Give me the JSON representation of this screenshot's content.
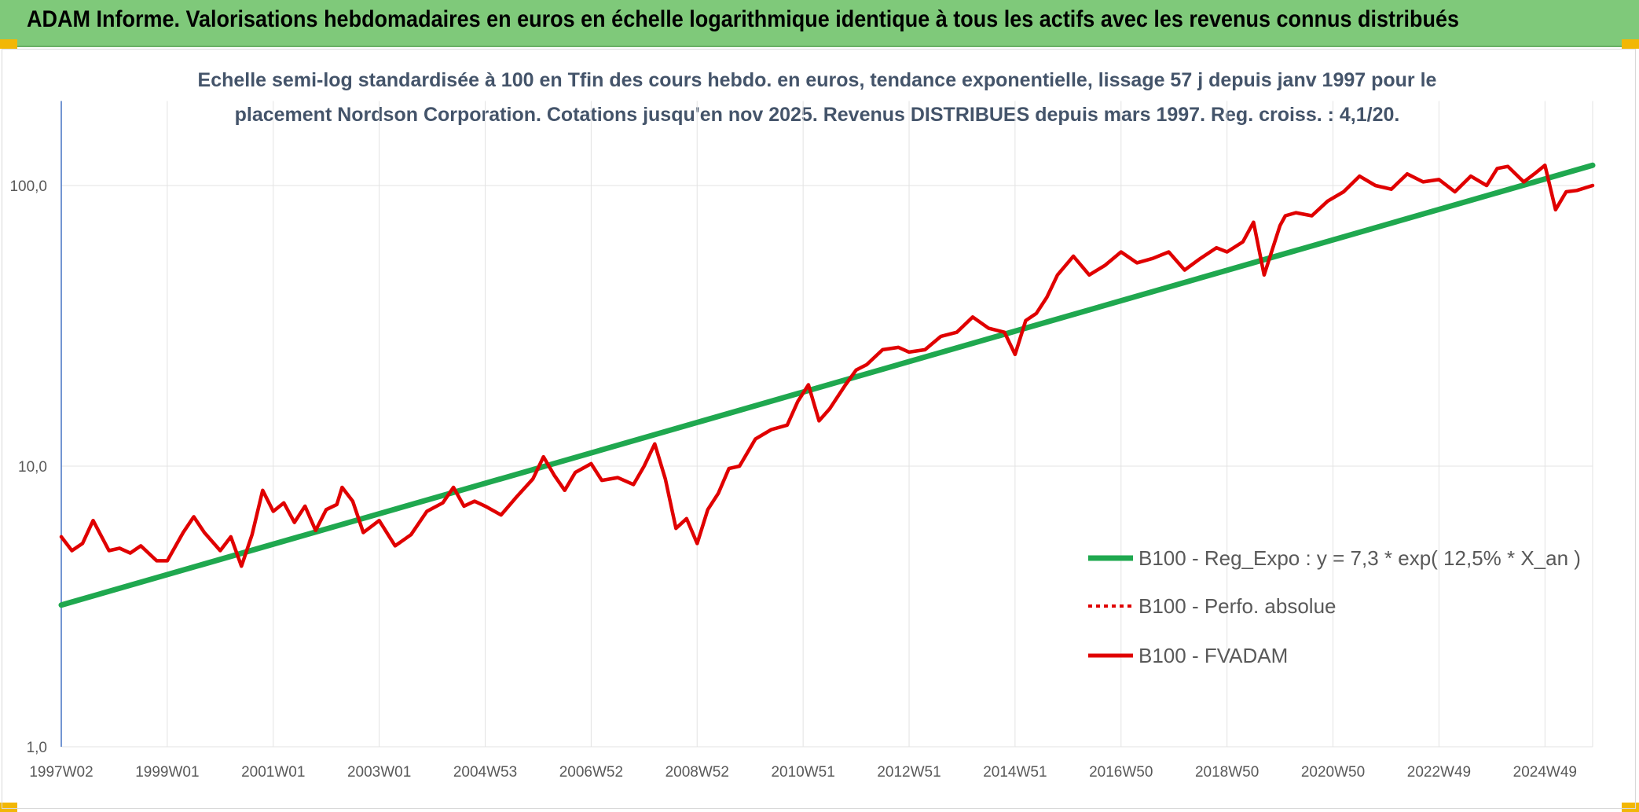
{
  "header": {
    "title": "ADAM Informe. Valorisations hebdomadaires en euros en échelle logarithmique identique à tous les actifs avec les revenus connus distribués"
  },
  "chart_data": {
    "type": "line",
    "subtitle_line1": "Echelle semi-log standardisée à 100 en Tfin des cours hebdo. en euros, tendance exponentielle, lissage 57 j depuis janv 1997 pour le",
    "subtitle_line2": "placement Nordson Corporation. Cotations jusqu'en nov 2025. Revenus DISTRIBUES depuis mars 1997. Reg. croiss. : 4,1/20.",
    "y_scale": "log",
    "ylim": [
      1,
      200
    ],
    "xlim": [
      1997.0,
      2025.9
    ],
    "grid": true,
    "legend_position": "right",
    "y_ticks": [
      {
        "value": 1,
        "label": "1,0"
      },
      {
        "value": 10,
        "label": "10,0"
      },
      {
        "value": 100,
        "label": "100,0"
      }
    ],
    "x_ticks": [
      {
        "value": 1997.0,
        "label": "1997W02"
      },
      {
        "value": 1999.0,
        "label": "1999W01"
      },
      {
        "value": 2001.0,
        "label": "2001W01"
      },
      {
        "value": 2003.0,
        "label": "2003W01"
      },
      {
        "value": 2005.0,
        "label": "2004W53"
      },
      {
        "value": 2007.0,
        "label": "2006W52"
      },
      {
        "value": 2009.0,
        "label": "2008W52"
      },
      {
        "value": 2011.0,
        "label": "2010W51"
      },
      {
        "value": 2013.0,
        "label": "2012W51"
      },
      {
        "value": 2015.0,
        "label": "2014W51"
      },
      {
        "value": 2017.0,
        "label": "2016W50"
      },
      {
        "value": 2019.0,
        "label": "2018W50"
      },
      {
        "value": 2021.0,
        "label": "2020W50"
      },
      {
        "value": 2023.0,
        "label": "2022W49"
      },
      {
        "value": 2025.0,
        "label": "2024W49"
      }
    ],
    "series": [
      {
        "name": "B100 - Reg_Expo : y = 7,3 * exp( 12,5% *  X_an )",
        "color": "#1fa84f",
        "style": "solid",
        "x": [
          1997.0,
          2025.9
        ],
        "y": [
          3.2,
          118
        ]
      },
      {
        "name": "B100 - Perfo. absolue",
        "color": "#e00000",
        "style": "dotted",
        "x": [],
        "y": []
      },
      {
        "name": "B100 - FVADAM",
        "color": "#e00000",
        "style": "solid",
        "x": [
          1997.0,
          1997.2,
          1997.4,
          1997.6,
          1997.9,
          1998.1,
          1998.3,
          1998.5,
          1998.8,
          1999.0,
          1999.3,
          1999.5,
          1999.7,
          2000.0,
          2000.2,
          2000.4,
          2000.6,
          2000.8,
          2001.0,
          2001.2,
          2001.4,
          2001.6,
          2001.8,
          2002.0,
          2002.2,
          2002.3,
          2002.5,
          2002.7,
          2003.0,
          2003.3,
          2003.6,
          2003.9,
          2004.2,
          2004.4,
          2004.6,
          2004.8,
          2005.0,
          2005.3,
          2005.6,
          2005.9,
          2006.1,
          2006.3,
          2006.5,
          2006.7,
          2007.0,
          2007.2,
          2007.5,
          2007.8,
          2008.0,
          2008.2,
          2008.4,
          2008.6,
          2008.8,
          2009.0,
          2009.2,
          2009.4,
          2009.6,
          2009.8,
          2010.1,
          2010.4,
          2010.7,
          2010.9,
          2011.1,
          2011.3,
          2011.5,
          2011.8,
          2012.0,
          2012.2,
          2012.5,
          2012.8,
          2013.0,
          2013.3,
          2013.6,
          2013.9,
          2014.2,
          2014.5,
          2014.8,
          2015.0,
          2015.2,
          2015.4,
          2015.6,
          2015.8,
          2016.1,
          2016.4,
          2016.7,
          2017.0,
          2017.3,
          2017.6,
          2017.9,
          2018.2,
          2018.5,
          2018.8,
          2019.0,
          2019.3,
          2019.5,
          2019.7,
          2020.0,
          2020.1,
          2020.3,
          2020.6,
          2020.9,
          2021.2,
          2021.5,
          2021.8,
          2022.1,
          2022.4,
          2022.7,
          2023.0,
          2023.3,
          2023.6,
          2023.9,
          2024.1,
          2024.3,
          2024.6,
          2024.8,
          2025.0,
          2025.2,
          2025.4,
          2025.6,
          2025.9
        ],
        "y": [
          5.6,
          5.0,
          5.3,
          6.4,
          5.0,
          5.1,
          4.9,
          5.2,
          4.6,
          4.6,
          5.8,
          6.6,
          5.8,
          5.0,
          5.6,
          4.4,
          5.7,
          8.2,
          6.9,
          7.4,
          6.3,
          7.2,
          5.9,
          7.0,
          7.3,
          8.4,
          7.5,
          5.8,
          6.4,
          5.2,
          5.7,
          6.9,
          7.4,
          8.4,
          7.2,
          7.5,
          7.2,
          6.7,
          7.8,
          9.0,
          10.8,
          9.3,
          8.2,
          9.5,
          10.2,
          8.9,
          9.1,
          8.6,
          10.0,
          12.0,
          9.0,
          6.0,
          6.5,
          5.3,
          7.0,
          8.0,
          9.8,
          10.0,
          12.5,
          13.5,
          14.0,
          17.0,
          19.5,
          14.5,
          16.0,
          19.5,
          22.0,
          23.0,
          26.0,
          26.5,
          25.5,
          26.0,
          29.0,
          30.0,
          34.0,
          31.0,
          30.0,
          25.0,
          33.0,
          35.0,
          40.0,
          48.0,
          56.0,
          48.0,
          52.0,
          58.0,
          53.0,
          55.0,
          58.0,
          50.0,
          55.0,
          60.0,
          58.0,
          63.0,
          74.0,
          48.0,
          72.0,
          78.0,
          80.0,
          78.0,
          88.0,
          95.0,
          108.0,
          100.0,
          97.0,
          110.0,
          103.0,
          105.0,
          95.0,
          108.0,
          100.0,
          115.0,
          117.0,
          103.0,
          110.0,
          118.0,
          82.0,
          95.0,
          96.0,
          100.0
        ]
      }
    ]
  }
}
